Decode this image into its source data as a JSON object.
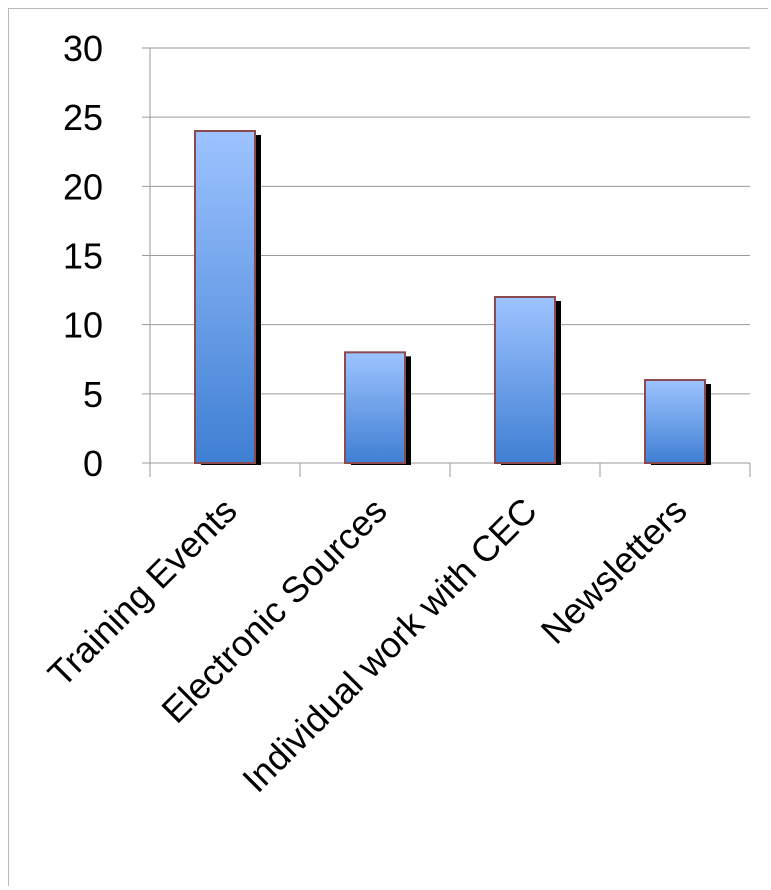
{
  "chart_data": {
    "type": "bar",
    "categories": [
      "Training Events",
      "Electronic Sources",
      "Individual work with CEC",
      "Newsletters"
    ],
    "values": [
      24,
      8,
      12,
      6
    ],
    "title": "",
    "xlabel": "",
    "ylabel": "",
    "ylim": [
      0,
      30
    ],
    "yticks": [
      0,
      5,
      10,
      15,
      20,
      25,
      30
    ],
    "grid": true,
    "legend": "none",
    "colors": {
      "bar_top": "#9dc3ff",
      "bar_bottom": "#3f7fd3",
      "bar_border": "#8b4a4f",
      "shadow": "#000000",
      "grid": "#9a9a9a"
    }
  }
}
